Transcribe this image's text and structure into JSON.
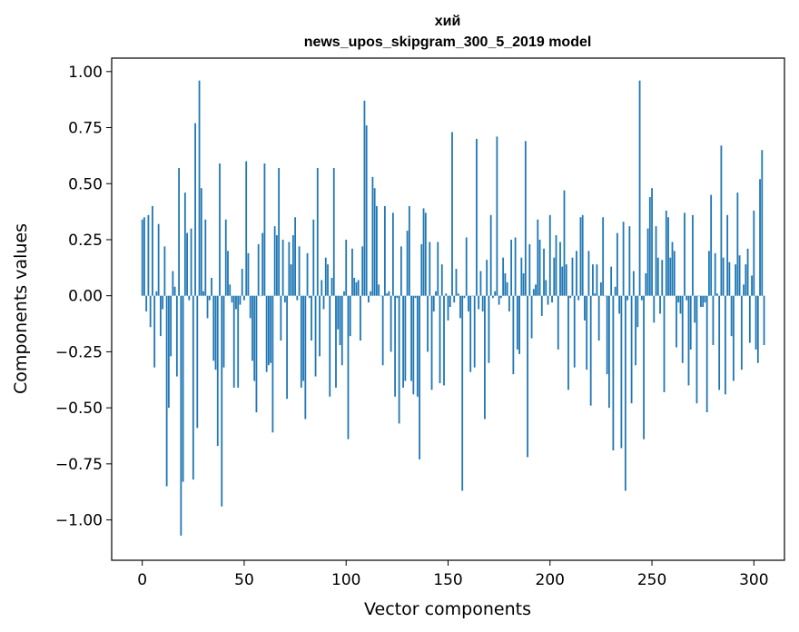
{
  "chart_data": {
    "type": "bar",
    "title": "хий",
    "subtitle": "news_upos_skipgram_300_5_2019 model",
    "xlabel": "Vector components",
    "ylabel": "Components values",
    "xlim": [
      -15,
      315
    ],
    "ylim": [
      -1.18,
      1.06
    ],
    "xticks": [
      0,
      50,
      100,
      150,
      200,
      250,
      300
    ],
    "yticks": [
      -1.0,
      -0.75,
      -0.5,
      -0.25,
      0.0,
      0.25,
      0.5,
      0.75,
      1.0
    ],
    "ytick_labels": [
      "−1.00",
      "−0.75",
      "−0.50",
      "−0.25",
      "0.00",
      "0.25",
      "0.50",
      "0.75",
      "1.00"
    ],
    "color": "#1f77b4",
    "values": [
      0.34,
      0.35,
      -0.07,
      0.36,
      -0.14,
      0.4,
      -0.32,
      0.02,
      0.32,
      -0.18,
      -0.06,
      0.22,
      -0.85,
      -0.5,
      -0.27,
      0.11,
      0.04,
      -0.36,
      0.57,
      -1.07,
      -0.83,
      0.46,
      0.28,
      -0.02,
      0.3,
      -0.82,
      0.77,
      -0.59,
      0.96,
      0.48,
      0.02,
      0.34,
      -0.1,
      -0.02,
      0.08,
      -0.29,
      -0.33,
      -0.67,
      0.59,
      -0.94,
      -0.32,
      0.34,
      0.2,
      0.05,
      -0.03,
      -0.41,
      -0.06,
      -0.41,
      -0.04,
      0.12,
      -0.02,
      0.6,
      0.19,
      -0.1,
      -0.29,
      -0.38,
      -0.52,
      0.23,
      0.0,
      0.28,
      0.59,
      -0.34,
      -0.31,
      -0.3,
      -0.61,
      0.31,
      0.27,
      0.57,
      -0.2,
      0.25,
      -0.03,
      -0.46,
      0.24,
      0.14,
      0.27,
      0.35,
      -0.02,
      0.22,
      -0.41,
      -0.38,
      -0.55,
      0.19,
      -0.01,
      -0.2,
      0.34,
      -0.36,
      0.57,
      -0.27,
      0.07,
      -0.06,
      0.17,
      0.14,
      -0.45,
      0.08,
      0.57,
      -0.41,
      -0.15,
      -0.22,
      -0.31,
      0.02,
      0.25,
      -0.64,
      -0.18,
      0.21,
      0.08,
      0.06,
      0.07,
      -0.2,
      0.22,
      0.87,
      0.76,
      -0.03,
      0.02,
      0.53,
      0.48,
      0.4,
      0.05,
      0.0,
      -0.31,
      0.4,
      0.01,
      0.02,
      -0.25,
      0.37,
      -0.45,
      -0.01,
      -0.57,
      0.22,
      -0.41,
      -0.38,
      0.29,
      0.4,
      -0.38,
      -0.44,
      -0.01,
      -0.45,
      -0.73,
      0.23,
      0.39,
      0.37,
      -0.25,
      0.24,
      -0.42,
      -0.07,
      0.02,
      0.24,
      -0.39,
      0.14,
      -0.4,
      0.01,
      -0.11,
      -0.05,
      0.73,
      -0.03,
      0.12,
      0.01,
      -0.1,
      -0.87,
      -0.01,
      0.26,
      -0.07,
      -0.34,
      0.0,
      -0.32,
      0.7,
      -0.06,
      0.11,
      -0.07,
      -0.55,
      0.16,
      -0.3,
      0.36,
      -0.01,
      0.02,
      0.71,
      -0.04,
      -0.01,
      0.17,
      0.1,
      0.06,
      -0.07,
      0.25,
      -0.35,
      0.26,
      -0.24,
      -0.26,
      0.17,
      0.1,
      0.69,
      -0.72,
      0.23,
      -0.19,
      0.03,
      0.05,
      0.34,
      0.25,
      -0.09,
      0.21,
      0.07,
      -0.04,
      0.36,
      -0.03,
      0.17,
      0.27,
      -0.24,
      0.24,
      0.13,
      0.47,
      0.14,
      -0.42,
      -0.01,
      0.17,
      -0.32,
      0.2,
      -0.02,
      0.35,
      0.36,
      -0.11,
      -0.33,
      0.2,
      -0.49,
      0.14,
      0.01,
      0.14,
      -0.2,
      0.06,
      0.35,
      0.0,
      -0.35,
      -0.5,
      0.13,
      -0.69,
      0.04,
      0.28,
      -0.08,
      -0.68,
      0.33,
      -0.87,
      -0.02,
      0.31,
      -0.48,
      0.11,
      -0.31,
      -0.14,
      0.96,
      -0.02,
      -0.64,
      0.1,
      0.3,
      0.44,
      0.48,
      -0.12,
      0.31,
      0.17,
      -0.08,
      0.16,
      -0.43,
      0.38,
      0.35,
      0.17,
      0.24,
      0.2,
      -0.23,
      -0.03,
      -0.08,
      -0.3,
      0.37,
      -0.02,
      -0.4,
      -0.24,
      0.36,
      -0.12,
      -0.48,
      0.0,
      -0.05,
      -0.05,
      -0.03,
      -0.52,
      0.2,
      0.45,
      -0.22,
      0.19,
      0.01,
      -0.42,
      0.67,
      0.17,
      -0.44,
      0.36,
      0.15,
      -0.18,
      -0.38,
      0.14,
      0.46,
      0.18,
      -0.33,
      0.05,
      0.14,
      0.21,
      -0.21,
      0.09,
      0.38,
      -0.24,
      -0.3,
      0.52,
      0.65,
      -0.22
    ]
  }
}
